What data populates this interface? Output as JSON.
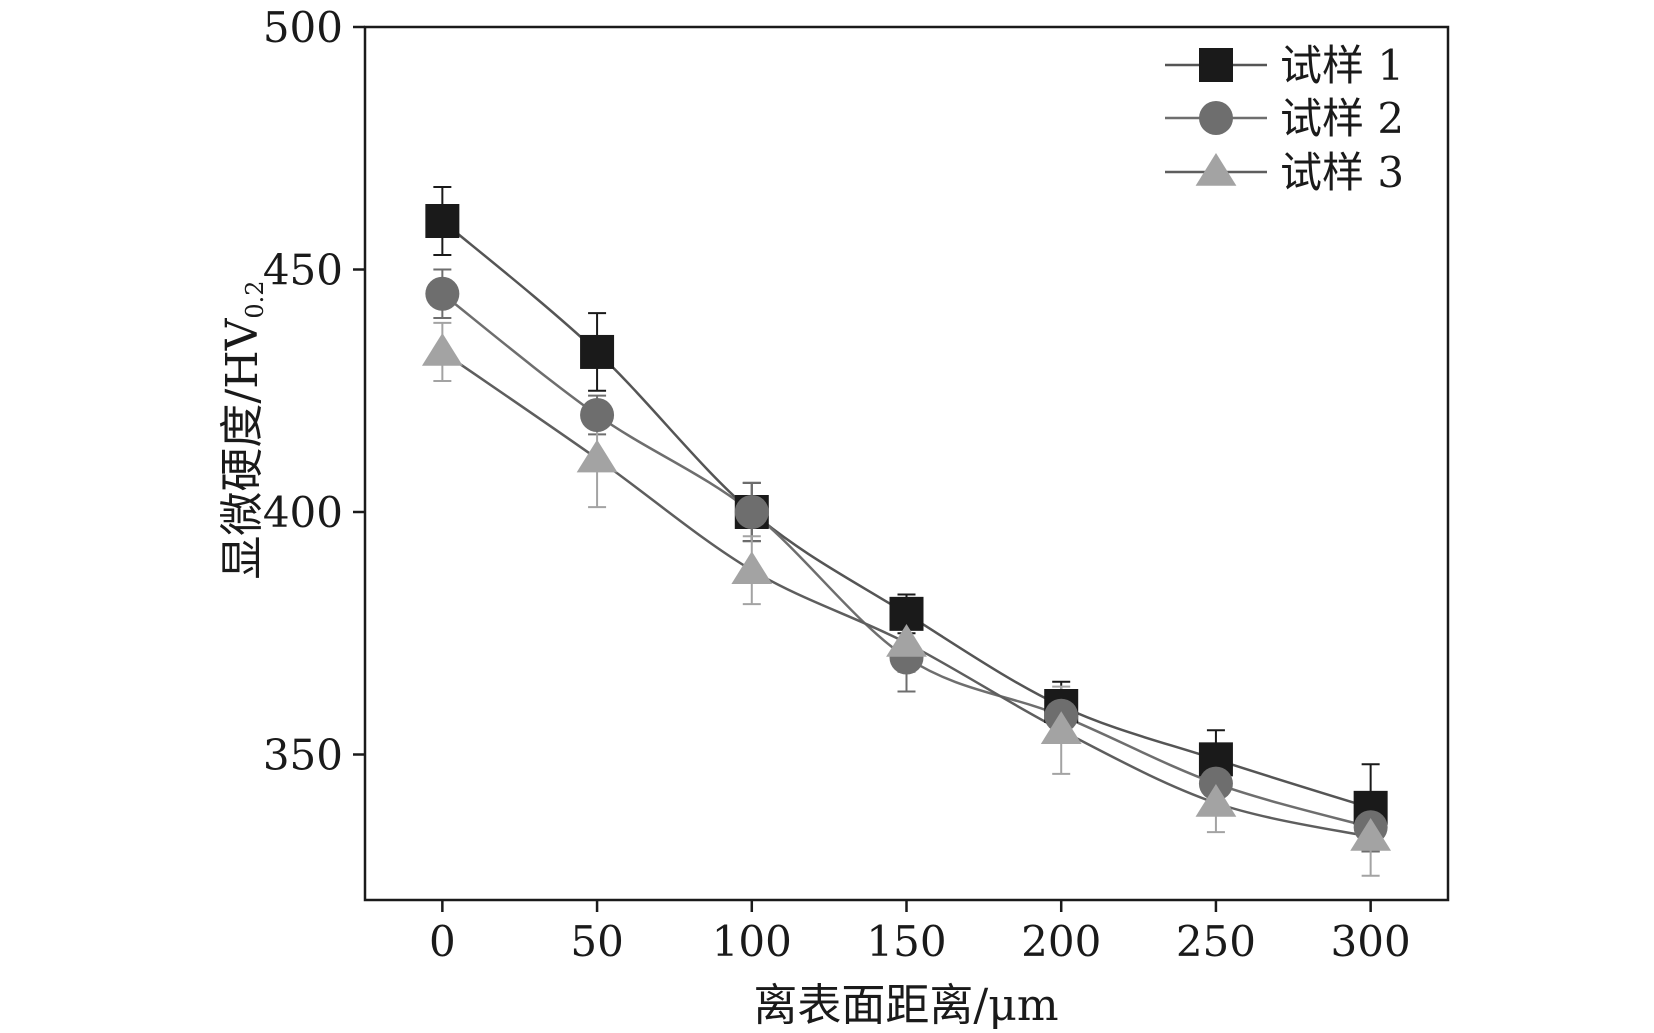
{
  "chart_data": {
    "type": "line",
    "xlabel": "离表面距离/μm",
    "ylabel": {
      "main": "显微硬度/HV",
      "sub": "0.2"
    },
    "x": [
      0,
      50,
      100,
      150,
      200,
      250,
      300
    ],
    "xticks": [
      "0",
      "50",
      "100",
      "150",
      "200",
      "250",
      "300"
    ],
    "xlim": [
      -25,
      325
    ],
    "yticks": [
      "350",
      "400",
      "450",
      "500"
    ],
    "ytick_values": [
      350,
      400,
      450,
      500
    ],
    "ylim": [
      320,
      500
    ],
    "grid": false,
    "legend_position": "top-right",
    "series": [
      {
        "name": "试样 1",
        "marker": "square",
        "color": "#1a1a1a",
        "line_color": "#555555",
        "values": [
          460,
          433,
          400,
          379,
          360,
          349,
          339
        ],
        "errors": [
          7,
          8,
          6,
          4,
          5,
          6,
          9
        ]
      },
      {
        "name": "试样 2",
        "marker": "circle",
        "color": "#6e6e6e",
        "line_color": "#6e6e6e",
        "values": [
          445,
          420,
          400,
          370,
          358,
          344,
          335
        ],
        "errors": [
          5,
          4,
          6,
          7,
          5,
          4,
          5
        ]
      },
      {
        "name": "试样 3",
        "marker": "triangle",
        "color": "#a3a3a3",
        "line_color": "#5e5e5e",
        "values": [
          433,
          411,
          388,
          373,
          355,
          340,
          333
        ],
        "errors": [
          6,
          10,
          7,
          6,
          9,
          6,
          8
        ]
      }
    ]
  }
}
